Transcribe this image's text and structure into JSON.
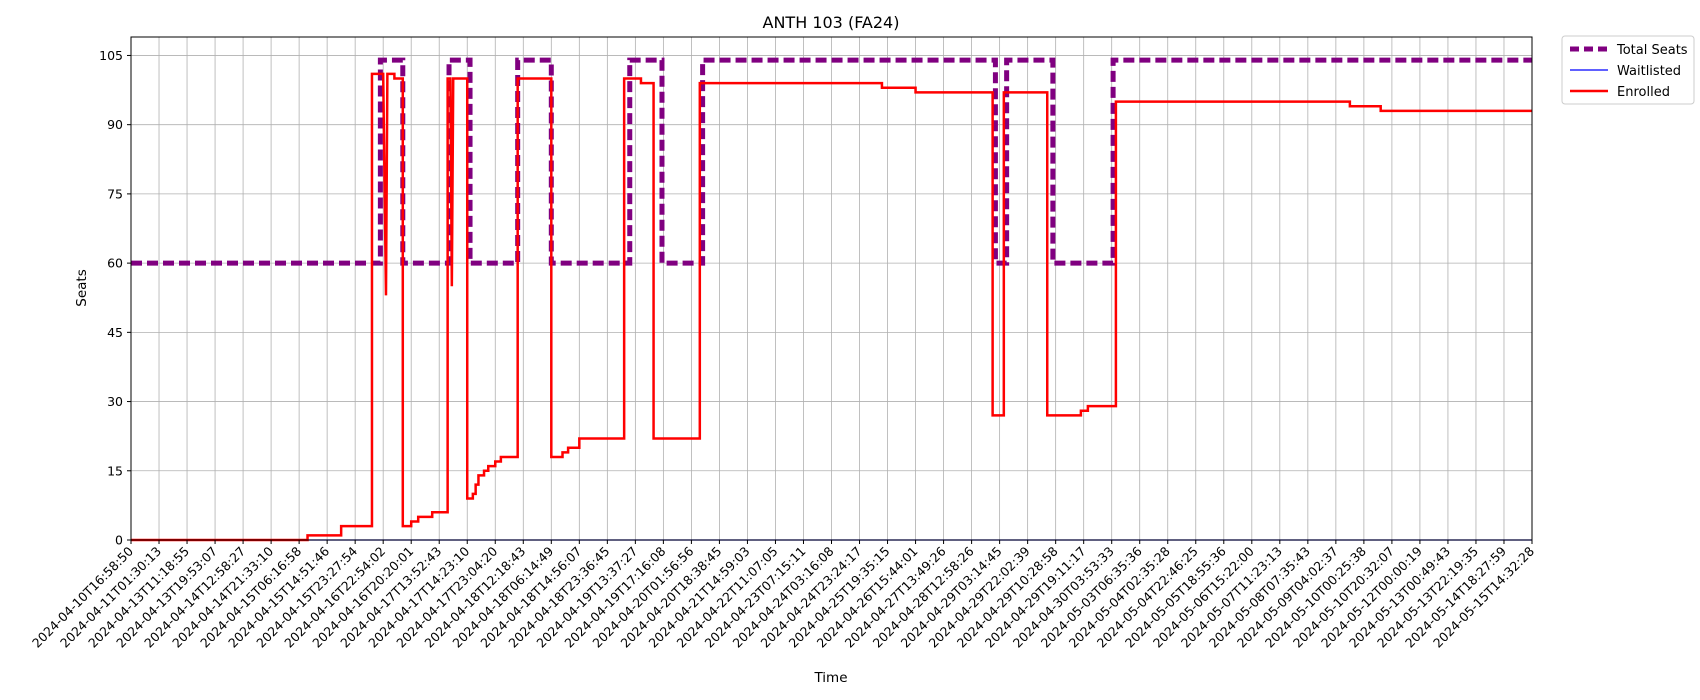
{
  "chart_data": {
    "type": "line",
    "title": "ANTH 103 (FA24)",
    "xlabel": "Time",
    "ylabel": "Seats",
    "ylim": [
      0,
      109
    ],
    "yticks": [
      0,
      15,
      30,
      45,
      60,
      75,
      90,
      105
    ],
    "grid": true,
    "legend_position": "outside-top-right",
    "x_categories": [
      "2024-04-10T16:58:50",
      "2024-04-11T01:30:13",
      "2024-04-13T11:18:55",
      "2024-04-13T19:53:07",
      "2024-04-14T12:58:27",
      "2024-04-14T21:33:10",
      "2024-04-15T06:16:58",
      "2024-04-15T14:51:46",
      "2024-04-15T23:27:54",
      "2024-04-16T22:54:02",
      "2024-04-16T20:20:01",
      "2024-04-17T13:52:43",
      "2024-04-17T14:23:10",
      "2024-04-17T23:04:20",
      "2024-04-18T12:18:43",
      "2024-04-18T06:14:49",
      "2024-04-18T14:56:07",
      "2024-04-18T23:36:45",
      "2024-04-19T13:37:27",
      "2024-04-19T17:16:08",
      "2024-04-20T01:56:56",
      "2024-04-20T18:38:45",
      "2024-04-21T14:59:03",
      "2024-04-22T11:07:05",
      "2024-04-23T07:15:11",
      "2024-04-24T03:16:08",
      "2024-04-24T23:24:17",
      "2024-04-25T19:35:15",
      "2024-04-26T15:44:01",
      "2024-04-27T13:49:26",
      "2024-04-28T12:58:26",
      "2024-04-29T03:14:45",
      "2024-04-29T22:02:39",
      "2024-04-29T10:28:58",
      "2024-04-29T19:11:17",
      "2024-04-30T03:53:33",
      "2024-05-03T06:35:36",
      "2024-05-04T02:35:28",
      "2024-05-04T22:46:25",
      "2024-05-05T18:55:36",
      "2024-05-06T15:22:00",
      "2024-05-07T11:23:13",
      "2024-05-08T07:35:43",
      "2024-05-09T04:02:37",
      "2024-05-10T00:25:38",
      "2024-05-10T20:32:07",
      "2024-05-12T00:00:19",
      "2024-05-13T00:49:43",
      "2024-05-13T22:19:35",
      "2024-05-14T18:27:59",
      "2024-05-15T14:32:28"
    ],
    "series": [
      {
        "name": "Total Seats",
        "color": "#800080",
        "style": "dashed",
        "points": [
          [
            0,
            60
          ],
          [
            8.9,
            60
          ],
          [
            8.9,
            104
          ],
          [
            9.7,
            104
          ],
          [
            9.7,
            60
          ],
          [
            11.35,
            60
          ],
          [
            11.35,
            104
          ],
          [
            12.1,
            104
          ],
          [
            12.1,
            60
          ],
          [
            13.8,
            60
          ],
          [
            13.8,
            104
          ],
          [
            15.0,
            104
          ],
          [
            15.0,
            60
          ],
          [
            17.8,
            60
          ],
          [
            17.8,
            104
          ],
          [
            18.95,
            104
          ],
          [
            18.95,
            60
          ],
          [
            20.4,
            60
          ],
          [
            20.4,
            104
          ],
          [
            30.85,
            104
          ],
          [
            30.85,
            60
          ],
          [
            31.25,
            60
          ],
          [
            31.25,
            104
          ],
          [
            32.9,
            104
          ],
          [
            32.9,
            60
          ],
          [
            35.05,
            60
          ],
          [
            35.05,
            104
          ],
          [
            50,
            104
          ]
        ]
      },
      {
        "name": "Waitlisted",
        "color": "#0000ff",
        "style": "solid",
        "points": [
          [
            0,
            0
          ],
          [
            50,
            0
          ]
        ]
      },
      {
        "name": "Enrolled",
        "color": "#ff0000",
        "style": "solid",
        "points": [
          [
            0,
            0
          ],
          [
            6.3,
            0
          ],
          [
            6.3,
            1
          ],
          [
            7.5,
            1
          ],
          [
            7.5,
            3
          ],
          [
            8.6,
            3
          ],
          [
            8.6,
            101
          ],
          [
            9.0,
            101
          ],
          [
            9.0,
            101
          ],
          [
            9.1,
            53
          ],
          [
            9.15,
            101
          ],
          [
            9.4,
            101
          ],
          [
            9.4,
            100
          ],
          [
            9.7,
            100
          ],
          [
            9.7,
            3
          ],
          [
            10.0,
            3
          ],
          [
            10.0,
            4
          ],
          [
            10.25,
            4
          ],
          [
            10.25,
            5
          ],
          [
            10.75,
            5
          ],
          [
            10.75,
            6
          ],
          [
            11.3,
            6
          ],
          [
            11.3,
            100
          ],
          [
            11.4,
            100
          ],
          [
            11.45,
            55
          ],
          [
            11.5,
            100
          ],
          [
            12.0,
            100
          ],
          [
            12.0,
            9
          ],
          [
            12.2,
            9
          ],
          [
            12.2,
            10
          ],
          [
            12.3,
            10
          ],
          [
            12.3,
            12
          ],
          [
            12.4,
            12
          ],
          [
            12.4,
            14
          ],
          [
            12.6,
            14
          ],
          [
            12.6,
            15
          ],
          [
            12.75,
            15
          ],
          [
            12.75,
            16
          ],
          [
            13.0,
            16
          ],
          [
            13.0,
            17
          ],
          [
            13.2,
            17
          ],
          [
            13.2,
            18
          ],
          [
            13.8,
            18
          ],
          [
            13.8,
            100
          ],
          [
            15.0,
            100
          ],
          [
            15.0,
            18
          ],
          [
            15.4,
            18
          ],
          [
            15.4,
            19
          ],
          [
            15.6,
            19
          ],
          [
            15.6,
            20
          ],
          [
            16.0,
            20
          ],
          [
            16.0,
            22
          ],
          [
            17.6,
            22
          ],
          [
            17.6,
            100
          ],
          [
            18.2,
            100
          ],
          [
            18.2,
            99
          ],
          [
            18.65,
            99
          ],
          [
            18.65,
            22
          ],
          [
            20.3,
            22
          ],
          [
            20.3,
            99
          ],
          [
            26.8,
            99
          ],
          [
            26.8,
            98
          ],
          [
            28.0,
            98
          ],
          [
            28.0,
            97
          ],
          [
            30.75,
            97
          ],
          [
            30.75,
            27
          ],
          [
            31.15,
            27
          ],
          [
            31.15,
            97
          ],
          [
            32.7,
            97
          ],
          [
            32.7,
            27
          ],
          [
            33.9,
            27
          ],
          [
            33.9,
            28
          ],
          [
            34.15,
            28
          ],
          [
            34.15,
            29
          ],
          [
            35.15,
            29
          ],
          [
            35.15,
            95
          ],
          [
            43.5,
            95
          ],
          [
            43.5,
            94
          ],
          [
            44.6,
            94
          ],
          [
            44.6,
            93
          ],
          [
            50,
            93
          ]
        ]
      }
    ]
  }
}
